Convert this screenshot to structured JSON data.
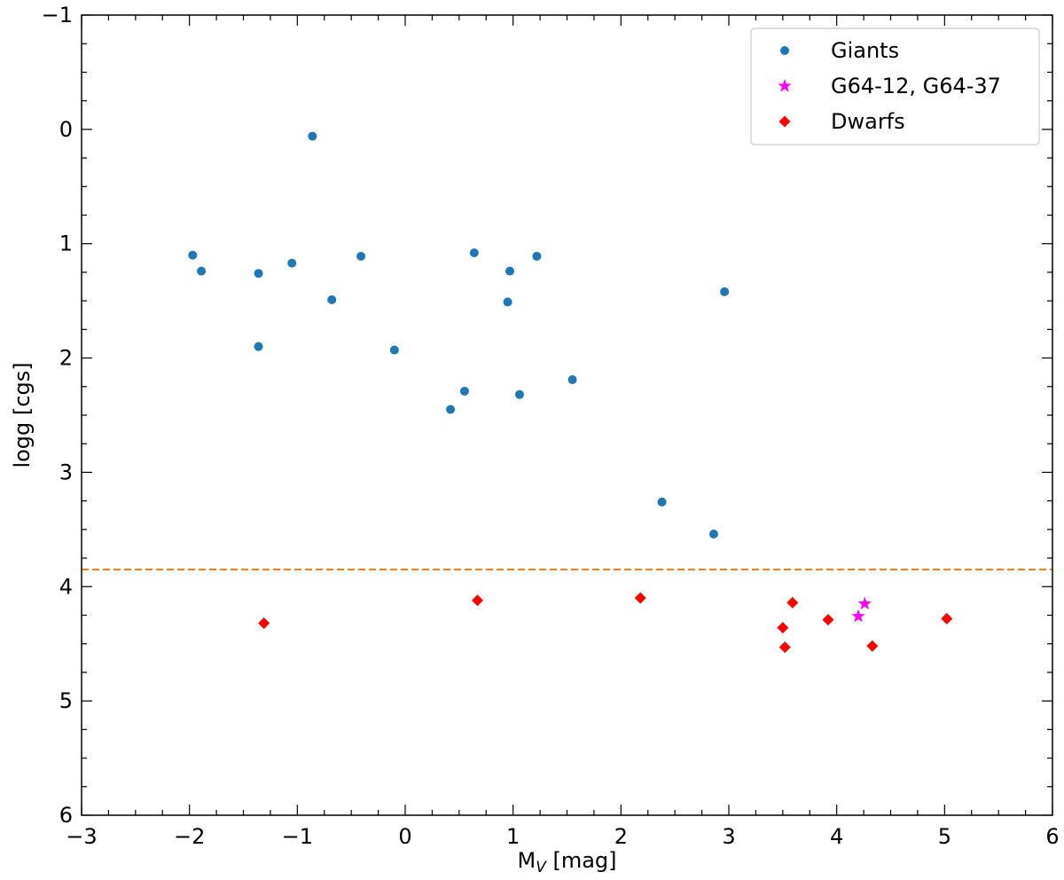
{
  "chart_data": {
    "type": "scatter",
    "title": "",
    "xlabel_main": "M",
    "xlabel_sub": "V",
    "xlabel_unit": " [mag]",
    "ylabel": "logg [cgs]",
    "xlim": [
      -3,
      6
    ],
    "ylim": [
      -1,
      6
    ],
    "y_inverted": true,
    "x_ticks": [
      -3,
      -2,
      -1,
      0,
      1,
      2,
      3,
      4,
      5,
      6
    ],
    "x_tick_labels": [
      "−3",
      "−2",
      "−1",
      "0",
      "1",
      "2",
      "3",
      "4",
      "5",
      "6"
    ],
    "y_ticks": [
      -1,
      0,
      1,
      2,
      3,
      4,
      5,
      6
    ],
    "y_tick_labels": [
      "−1",
      "0",
      "1",
      "2",
      "3",
      "4",
      "5",
      "6"
    ],
    "grid": false,
    "legend_position": "top-right",
    "hline": {
      "y": 3.85,
      "color": "#ff7f0e",
      "style": "dashed"
    },
    "series": [
      {
        "name": "Giants",
        "marker": "circle",
        "color": "#1f77b4",
        "points": [
          [
            -0.86,
            0.06
          ],
          [
            -1.97,
            1.1
          ],
          [
            -1.89,
            1.24
          ],
          [
            -1.36,
            1.26
          ],
          [
            -1.05,
            1.17
          ],
          [
            -0.68,
            1.49
          ],
          [
            -0.41,
            1.11
          ],
          [
            -1.36,
            1.9
          ],
          [
            -0.1,
            1.93
          ],
          [
            0.42,
            2.45
          ],
          [
            0.55,
            2.29
          ],
          [
            0.64,
            1.08
          ],
          [
            0.95,
            1.51
          ],
          [
            0.97,
            1.24
          ],
          [
            1.06,
            2.32
          ],
          [
            1.22,
            1.11
          ],
          [
            1.55,
            2.19
          ],
          [
            2.38,
            3.26
          ],
          [
            2.86,
            3.54
          ],
          [
            2.96,
            1.42
          ]
        ]
      },
      {
        "name": "G64-12, G64-37",
        "marker": "star",
        "color": "#ff00ff",
        "points": [
          [
            4.2,
            4.26
          ],
          [
            4.26,
            4.15
          ]
        ]
      },
      {
        "name": "Dwarfs",
        "marker": "diamond",
        "color": "#ff0000",
        "points": [
          [
            -1.31,
            4.32
          ],
          [
            0.67,
            4.12
          ],
          [
            2.18,
            4.1
          ],
          [
            3.5,
            4.36
          ],
          [
            3.52,
            4.53
          ],
          [
            3.59,
            4.14
          ],
          [
            3.92,
            4.29
          ],
          [
            4.33,
            4.52
          ],
          [
            5.02,
            4.28
          ]
        ]
      }
    ]
  }
}
